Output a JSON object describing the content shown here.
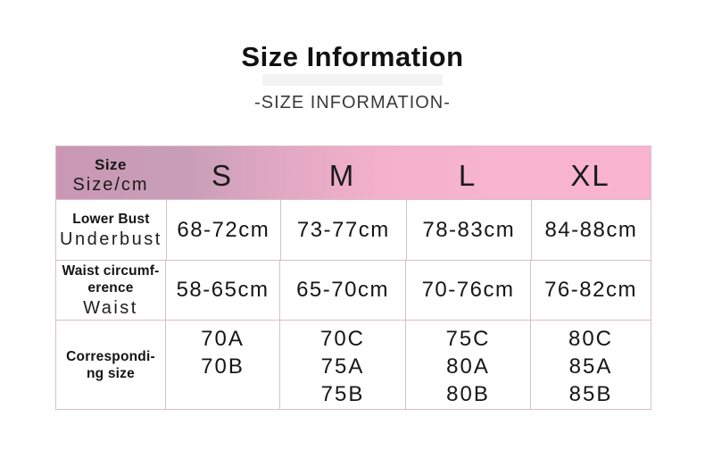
{
  "page": {
    "title": "Size Information",
    "subtitle": "-SIZE INFORMATION-"
  },
  "colors": {
    "header_gradient_left": "#c997b4",
    "header_gradient_right": "#f8b4ce",
    "cell_border": "#d8bec9",
    "title_shadow": "#f3f3f3",
    "text": "#1a1a1a"
  },
  "table": {
    "header": {
      "label_line1": "Size",
      "label_line2": "Size/cm",
      "sizes": [
        "S",
        "M",
        "L",
        "XL"
      ]
    },
    "rows": [
      {
        "label_bold": [
          "Lower Bust"
        ],
        "label_sub": "Underbust",
        "values": [
          "68-72cm",
          "73-77cm",
          "78-83cm",
          "84-88cm"
        ]
      },
      {
        "label_bold": [
          "Waist circumf-",
          "erence"
        ],
        "label_sub": "Waist",
        "values": [
          "58-65cm",
          "65-70cm",
          "70-76cm",
          "76-82cm"
        ]
      },
      {
        "label_bold": [
          "Correspondi-",
          "ng size"
        ],
        "label_sub": "",
        "values": [
          [
            "70A",
            "70B"
          ],
          [
            "70C",
            "75A",
            "75B"
          ],
          [
            "75C",
            "80A",
            "80B"
          ],
          [
            "80C",
            "85A",
            "85B"
          ]
        ]
      }
    ]
  }
}
